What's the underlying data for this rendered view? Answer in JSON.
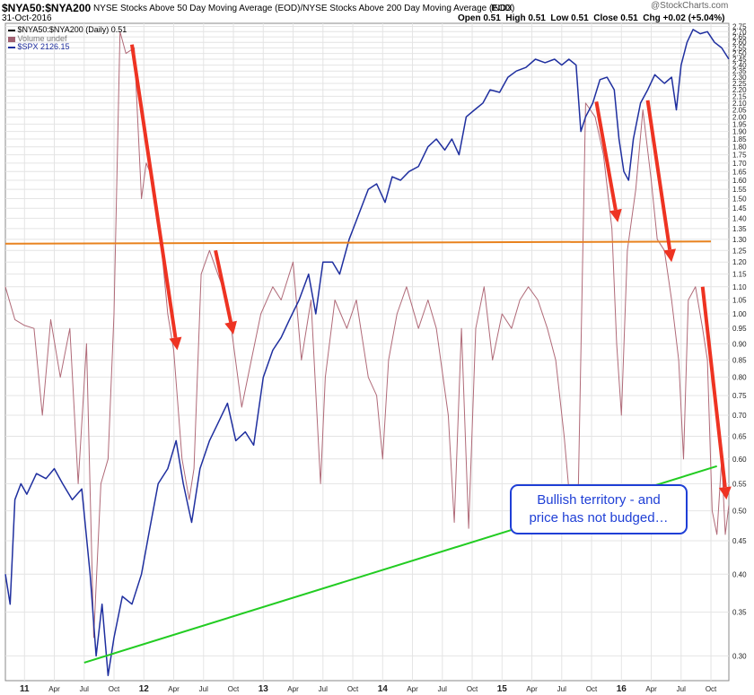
{
  "header": {
    "symbol": "$NYA50:$NYA200",
    "description": "NYSE Stocks Above 50 Day Moving Average (EOD)/NYSE Stocks Above 200 Day Moving Average (EOD)",
    "exchange": "INDX",
    "date": "31-Oct-2016",
    "watermark": "@StockCharts.com",
    "quote": {
      "open": "Open 0.51",
      "high": "High 0.51",
      "low": "Low 0.51",
      "close": "Close 0.51",
      "chg": "Chg +0.02 (+5.04%)"
    }
  },
  "legend": [
    {
      "label": "$NYA50:$NYA200 (Daily) 0.51",
      "color": "#000000"
    },
    {
      "label": "Volume undef",
      "color": "#a06070"
    },
    {
      "label": "$SPX 2126.15",
      "color": "#1f2f9f"
    }
  ],
  "callout": {
    "line1": "Bullish territory - and",
    "line2": "price has not budged…"
  },
  "chart_data": {
    "type": "line",
    "y_scale": "log",
    "ylim": [
      0.275,
      2.78
    ],
    "xlim": [
      2010.84,
      2016.9
    ],
    "y_ticks": [
      0.3,
      0.35,
      0.4,
      0.45,
      0.5,
      0.55,
      0.6,
      0.65,
      0.7,
      0.75,
      0.8,
      0.85,
      0.9,
      0.95,
      1.0,
      1.05,
      1.1,
      1.15,
      1.2,
      1.25,
      1.3,
      1.35,
      1.4,
      1.45,
      1.5,
      1.55,
      1.6,
      1.65,
      1.7,
      1.75,
      1.8,
      1.85,
      1.9,
      1.95,
      2.0,
      2.05,
      2.1,
      2.15,
      2.2,
      2.25,
      2.3,
      2.35,
      2.4,
      2.45,
      2.5,
      2.55,
      2.6,
      2.65,
      2.7,
      2.75
    ],
    "x_ticks": [
      {
        "label": "11",
        "x": 2011.0
      },
      {
        "label": "Apr",
        "x": 2011.25
      },
      {
        "label": "Jul",
        "x": 2011.5
      },
      {
        "label": "Oct",
        "x": 2011.75
      },
      {
        "label": "12",
        "x": 2012.0
      },
      {
        "label": "Apr",
        "x": 2012.25
      },
      {
        "label": "Jul",
        "x": 2012.5
      },
      {
        "label": "Oct",
        "x": 2012.75
      },
      {
        "label": "13",
        "x": 2013.0
      },
      {
        "label": "Apr",
        "x": 2013.25
      },
      {
        "label": "Jul",
        "x": 2013.5
      },
      {
        "label": "Oct",
        "x": 2013.75
      },
      {
        "label": "14",
        "x": 2014.0
      },
      {
        "label": "Apr",
        "x": 2014.25
      },
      {
        "label": "Jul",
        "x": 2014.5
      },
      {
        "label": "Oct",
        "x": 2014.75
      },
      {
        "label": "15",
        "x": 2015.0
      },
      {
        "label": "Apr",
        "x": 2015.25
      },
      {
        "label": "Jul",
        "x": 2015.5
      },
      {
        "label": "Oct",
        "x": 2015.75
      },
      {
        "label": "16",
        "x": 2016.0
      },
      {
        "label": "Apr",
        "x": 2016.25
      },
      {
        "label": "Jul",
        "x": 2016.5
      },
      {
        "label": "Oct",
        "x": 2016.75
      }
    ],
    "grid": true,
    "series": [
      {
        "name": "$NYA50:$NYA200",
        "color": "#b06a78",
        "points": [
          [
            2010.84,
            1.1
          ],
          [
            2010.92,
            0.98
          ],
          [
            2011.0,
            0.96
          ],
          [
            2011.08,
            0.95
          ],
          [
            2011.15,
            0.7
          ],
          [
            2011.22,
            0.98
          ],
          [
            2011.3,
            0.8
          ],
          [
            2011.38,
            0.95
          ],
          [
            2011.45,
            0.55
          ],
          [
            2011.52,
            0.9
          ],
          [
            2011.58,
            0.32
          ],
          [
            2011.64,
            0.55
          ],
          [
            2011.7,
            0.6
          ],
          [
            2011.75,
            1.0
          ],
          [
            2011.8,
            2.7
          ],
          [
            2011.85,
            2.5
          ],
          [
            2011.92,
            2.55
          ],
          [
            2011.98,
            1.5
          ],
          [
            2012.02,
            1.7
          ],
          [
            2012.08,
            1.6
          ],
          [
            2012.15,
            1.25
          ],
          [
            2012.2,
            1.0
          ],
          [
            2012.25,
            0.88
          ],
          [
            2012.32,
            0.6
          ],
          [
            2012.38,
            0.52
          ],
          [
            2012.42,
            0.58
          ],
          [
            2012.48,
            1.15
          ],
          [
            2012.55,
            1.25
          ],
          [
            2012.62,
            1.15
          ],
          [
            2012.7,
            1.05
          ],
          [
            2012.75,
            0.9
          ],
          [
            2012.82,
            0.72
          ],
          [
            2012.9,
            0.85
          ],
          [
            2012.98,
            1.0
          ],
          [
            2013.08,
            1.1
          ],
          [
            2013.15,
            1.05
          ],
          [
            2013.25,
            1.2
          ],
          [
            2013.32,
            0.85
          ],
          [
            2013.4,
            1.05
          ],
          [
            2013.48,
            0.55
          ],
          [
            2013.52,
            0.8
          ],
          [
            2013.6,
            1.05
          ],
          [
            2013.7,
            0.95
          ],
          [
            2013.78,
            1.05
          ],
          [
            2013.88,
            0.8
          ],
          [
            2013.95,
            0.75
          ],
          [
            2014.0,
            0.6
          ],
          [
            2014.05,
            0.85
          ],
          [
            2014.12,
            1.0
          ],
          [
            2014.2,
            1.1
          ],
          [
            2014.3,
            0.95
          ],
          [
            2014.38,
            1.05
          ],
          [
            2014.45,
            0.95
          ],
          [
            2014.55,
            0.7
          ],
          [
            2014.6,
            0.48
          ],
          [
            2014.66,
            0.95
          ],
          [
            2014.72,
            0.47
          ],
          [
            2014.78,
            0.95
          ],
          [
            2014.85,
            1.1
          ],
          [
            2014.92,
            0.85
          ],
          [
            2015.0,
            1.0
          ],
          [
            2015.08,
            0.95
          ],
          [
            2015.15,
            1.05
          ],
          [
            2015.22,
            1.1
          ],
          [
            2015.3,
            1.05
          ],
          [
            2015.38,
            0.95
          ],
          [
            2015.45,
            0.85
          ],
          [
            2015.52,
            0.65
          ],
          [
            2015.58,
            0.49
          ],
          [
            2015.64,
            0.55
          ],
          [
            2015.7,
            2.1
          ],
          [
            2015.78,
            2.0
          ],
          [
            2015.85,
            1.75
          ],
          [
            2015.92,
            1.35
          ],
          [
            2015.96,
            0.9
          ],
          [
            2016.0,
            0.7
          ],
          [
            2016.05,
            1.25
          ],
          [
            2016.12,
            1.55
          ],
          [
            2016.18,
            2.05
          ],
          [
            2016.25,
            1.6
          ],
          [
            2016.3,
            1.3
          ],
          [
            2016.36,
            1.25
          ],
          [
            2016.42,
            1.05
          ],
          [
            2016.48,
            0.85
          ],
          [
            2016.52,
            0.6
          ],
          [
            2016.56,
            1.05
          ],
          [
            2016.62,
            1.1
          ],
          [
            2016.68,
            0.95
          ],
          [
            2016.72,
            0.85
          ],
          [
            2016.76,
            0.5
          ],
          [
            2016.8,
            0.46
          ],
          [
            2016.84,
            0.6
          ],
          [
            2016.87,
            0.46
          ],
          [
            2016.9,
            0.51
          ]
        ]
      },
      {
        "name": "$SPX",
        "color": "#1f2f9f",
        "points": [
          [
            2010.84,
            0.4
          ],
          [
            2010.88,
            0.36
          ],
          [
            2010.92,
            0.52
          ],
          [
            2010.97,
            0.55
          ],
          [
            2011.02,
            0.53
          ],
          [
            2011.1,
            0.57
          ],
          [
            2011.18,
            0.56
          ],
          [
            2011.25,
            0.58
          ],
          [
            2011.32,
            0.55
          ],
          [
            2011.4,
            0.52
          ],
          [
            2011.48,
            0.54
          ],
          [
            2011.55,
            0.4
          ],
          [
            2011.6,
            0.3
          ],
          [
            2011.65,
            0.36
          ],
          [
            2011.7,
            0.28
          ],
          [
            2011.75,
            0.32
          ],
          [
            2011.82,
            0.37
          ],
          [
            2011.9,
            0.36
          ],
          [
            2011.98,
            0.4
          ],
          [
            2012.05,
            0.47
          ],
          [
            2012.12,
            0.55
          ],
          [
            2012.2,
            0.58
          ],
          [
            2012.27,
            0.64
          ],
          [
            2012.33,
            0.55
          ],
          [
            2012.4,
            0.48
          ],
          [
            2012.47,
            0.58
          ],
          [
            2012.55,
            0.64
          ],
          [
            2012.62,
            0.68
          ],
          [
            2012.7,
            0.73
          ],
          [
            2012.77,
            0.64
          ],
          [
            2012.85,
            0.66
          ],
          [
            2012.92,
            0.63
          ],
          [
            2013.0,
            0.8
          ],
          [
            2013.08,
            0.88
          ],
          [
            2013.15,
            0.92
          ],
          [
            2013.22,
            0.98
          ],
          [
            2013.3,
            1.05
          ],
          [
            2013.38,
            1.15
          ],
          [
            2013.44,
            1.0
          ],
          [
            2013.5,
            1.2
          ],
          [
            2013.58,
            1.2
          ],
          [
            2013.64,
            1.15
          ],
          [
            2013.72,
            1.3
          ],
          [
            2013.8,
            1.42
          ],
          [
            2013.88,
            1.55
          ],
          [
            2013.95,
            1.58
          ],
          [
            2014.02,
            1.48
          ],
          [
            2014.08,
            1.62
          ],
          [
            2014.15,
            1.6
          ],
          [
            2014.22,
            1.65
          ],
          [
            2014.3,
            1.68
          ],
          [
            2014.38,
            1.8
          ],
          [
            2014.45,
            1.85
          ],
          [
            2014.52,
            1.78
          ],
          [
            2014.58,
            1.85
          ],
          [
            2014.64,
            1.75
          ],
          [
            2014.7,
            2.0
          ],
          [
            2014.77,
            2.05
          ],
          [
            2014.84,
            2.1
          ],
          [
            2014.9,
            2.2
          ],
          [
            2014.98,
            2.18
          ],
          [
            2015.05,
            2.3
          ],
          [
            2015.12,
            2.35
          ],
          [
            2015.2,
            2.38
          ],
          [
            2015.28,
            2.45
          ],
          [
            2015.36,
            2.42
          ],
          [
            2015.44,
            2.45
          ],
          [
            2015.5,
            2.4
          ],
          [
            2015.56,
            2.45
          ],
          [
            2015.62,
            2.4
          ],
          [
            2015.66,
            1.9
          ],
          [
            2015.7,
            2.0
          ],
          [
            2015.76,
            2.1
          ],
          [
            2015.82,
            2.28
          ],
          [
            2015.88,
            2.3
          ],
          [
            2015.94,
            2.2
          ],
          [
            2015.98,
            1.85
          ],
          [
            2016.02,
            1.65
          ],
          [
            2016.06,
            1.6
          ],
          [
            2016.1,
            1.85
          ],
          [
            2016.16,
            2.1
          ],
          [
            2016.22,
            2.2
          ],
          [
            2016.28,
            2.32
          ],
          [
            2016.36,
            2.25
          ],
          [
            2016.42,
            2.3
          ],
          [
            2016.46,
            2.05
          ],
          [
            2016.5,
            2.4
          ],
          [
            2016.55,
            2.6
          ],
          [
            2016.6,
            2.72
          ],
          [
            2016.66,
            2.68
          ],
          [
            2016.72,
            2.7
          ],
          [
            2016.78,
            2.6
          ],
          [
            2016.84,
            2.55
          ],
          [
            2016.9,
            2.45
          ]
        ]
      },
      {
        "name": "",
        "color": "#e8821e",
        "points": [
          [
            2010.84,
            1.28
          ],
          [
            2014.0,
            1.285
          ],
          [
            2016.75,
            1.29
          ]
        ]
      },
      {
        "name": "",
        "color": "#22cc22",
        "points": [
          [
            2011.5,
            0.293
          ],
          [
            2016.8,
            0.585
          ]
        ]
      }
    ],
    "arrows": [
      {
        "from": [
          2011.9,
          2.58
        ],
        "to": [
          2012.28,
          0.88
        ]
      },
      {
        "from": [
          2012.6,
          1.25
        ],
        "to": [
          2012.75,
          0.93
        ]
      },
      {
        "from": [
          2015.79,
          2.11
        ],
        "to": [
          2015.97,
          1.38
        ]
      },
      {
        "from": [
          2016.22,
          2.12
        ],
        "to": [
          2016.42,
          1.2
        ]
      },
      {
        "from": [
          2016.68,
          1.1
        ],
        "to": [
          2016.88,
          0.52
        ]
      }
    ]
  }
}
